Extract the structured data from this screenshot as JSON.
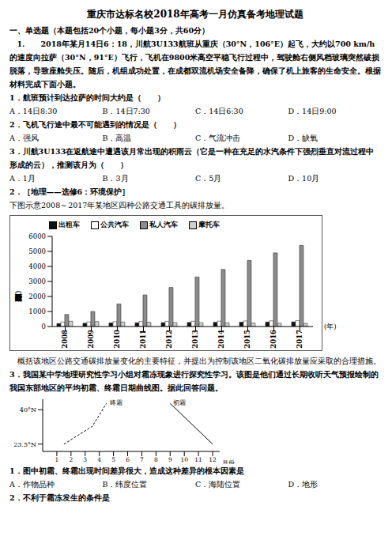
{
  "header": {
    "title": "重庆市达标名校2018年高考一月仿真备考地理试题"
  },
  "section": "一、单选题（本题包括20个小题，每小题3分，共60分）",
  "passage1": "1.　　2018年某月14日6：18，川航3U133航班从重庆（30°N，106°E）起飞，大约以700 km/h的速度向拉萨（30°N，91°E）飞行，飞机在9800米高空平稳飞行过程中，驾驶舱右侧风档玻璃突然破损脱落，导致座舱失压。随后，机组成功处置，在成都双流机场安全备降，确保了机上旅客的生命安全。根据材料完成下面小题。",
  "questions1": [
    {
      "stem": "1．航班预计到达拉萨的时间大约是（　　）",
      "options": [
        "A．14日8:30",
        "B．14日7:30",
        "C．14日6:30",
        "D．14日9:00"
      ]
    },
    {
      "stem": "2．飞机飞行途中最不可能遇到的情况是（　　）",
      "options": [
        "A．强风",
        "B．高温",
        "C．气流冲击",
        "D．缺氧"
      ]
    },
    {
      "stem": "3．川航3U133在返航途中遭遇该月常出现的积雨云（它是一种在充足的水汽条件下强烈垂直对流过程中形成的云），推测该月为（　　）",
      "options": [
        "A．1月",
        "B．3月",
        "C．5月",
        "D．10月"
      ]
    }
  ],
  "item2": {
    "heading": "2．［地理——选修6：环境保护］",
    "intro": "下图示意2008～2017年某地区四种公路交通工具的碳排放量。",
    "question": "概括该地区公路交通碳排放量变化的主要特征，并提出为控制该地区二氧化碳排放量应采取的合理措施。"
  },
  "item3": {
    "intro": "3．我国某中学地理研究性学习小组对霜冻现象进行探究性学习。该图是他们通过长期收听天气预报绘制的我国东部地区的平均初霜、终霜日期曲线图。据此回答问题。",
    "questions": [
      {
        "stem": "1．图中初霜、终霜出现时间差异很大，造成这种差异的根本因素是",
        "options": [
          "A．作物品种",
          "B．纬度位置",
          "C．海陆位置",
          "D．地形"
        ]
      },
      {
        "stem": "2．不利于霜冻发生的条件是",
        "options": []
      }
    ]
  },
  "chart_data": [
    {
      "type": "bar",
      "y_label": "碳排放量（万吨）",
      "x_label": "(年)",
      "categories": [
        "2008",
        "2009",
        "2010",
        "2011",
        "2012",
        "2013",
        "2014",
        "2015",
        "2016",
        "2017"
      ],
      "series": [
        {
          "name": "出租车",
          "color": "#111111",
          "values": [
            200,
            220,
            240,
            250,
            260,
            270,
            280,
            290,
            300,
            310
          ]
        },
        {
          "name": "公共汽车",
          "color": "#ffffff",
          "values": [
            300,
            310,
            320,
            330,
            340,
            350,
            360,
            370,
            380,
            390
          ]
        },
        {
          "name": "私人汽车",
          "color": "#8c8c8c",
          "values": [
            800,
            1000,
            1500,
            2100,
            2600,
            3300,
            3800,
            4400,
            4900,
            5400
          ]
        },
        {
          "name": "摩托车",
          "color": "#cfcfcf",
          "values": [
            350,
            330,
            300,
            280,
            260,
            250,
            240,
            230,
            220,
            210
          ]
        }
      ],
      "ylim": [
        0,
        6000
      ],
      "yticks": [
        0,
        1000,
        2000,
        3000,
        4000,
        5000,
        6000
      ],
      "grid": false,
      "legend": "top"
    },
    {
      "type": "line",
      "x_label": "月份",
      "xlim": [
        0,
        12.5
      ],
      "xticks": [
        1,
        2,
        3,
        4,
        5,
        6,
        7,
        8,
        9,
        10,
        11,
        12
      ],
      "ylim": [
        20,
        45
      ],
      "yticks": [
        {
          "value": 23.5,
          "label": "23.5°N"
        },
        {
          "value": 40,
          "label": "40°N"
        }
      ],
      "series": [
        {
          "name": "终霜",
          "color": "#000000",
          "line_style": "dashed",
          "x": [
            1.5,
            3.5,
            4.5
          ],
          "values": [
            23.5,
            32,
            43
          ]
        },
        {
          "name": "初霜",
          "color": "#000000",
          "line_style": "solid",
          "x": [
            9,
            12
          ],
          "values": [
            43,
            23.5
          ]
        }
      ]
    }
  ]
}
